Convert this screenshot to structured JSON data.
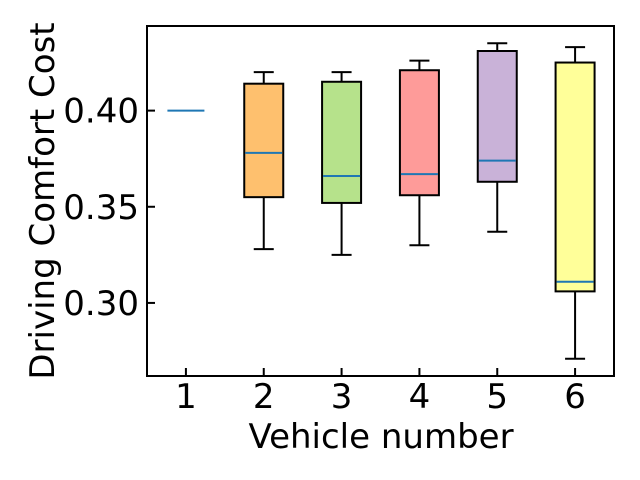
{
  "chart_data": {
    "type": "box",
    "title": "",
    "xlabel": "Vehicle number",
    "ylabel": "Driving Comfort Cost",
    "ylim": [
      0.262,
      0.444
    ],
    "yticks": [
      0.3,
      0.35,
      0.4
    ],
    "ytick_labels": [
      "0.30",
      "0.35",
      "0.40"
    ],
    "categories": [
      "1",
      "2",
      "3",
      "4",
      "5",
      "6"
    ],
    "grid": false,
    "legend": "none",
    "median_color": "#1f77b4",
    "boxes": [
      {
        "category": "1",
        "whisker_low": 0.4,
        "q1": 0.4,
        "median": 0.4,
        "q3": 0.4,
        "whisker_high": 0.4,
        "color": "#ffffff"
      },
      {
        "category": "2",
        "whisker_low": 0.328,
        "q1": 0.355,
        "median": 0.378,
        "q3": 0.414,
        "whisker_high": 0.42,
        "color": "#fec06e"
      },
      {
        "category": "3",
        "whisker_low": 0.325,
        "q1": 0.352,
        "median": 0.366,
        "q3": 0.415,
        "whisker_high": 0.42,
        "color": "#b6e28b"
      },
      {
        "category": "4",
        "whisker_low": 0.33,
        "q1": 0.356,
        "median": 0.367,
        "q3": 0.421,
        "whisker_high": 0.426,
        "color": "#fe9b99"
      },
      {
        "category": "5",
        "whisker_low": 0.337,
        "q1": 0.363,
        "median": 0.374,
        "q3": 0.431,
        "whisker_high": 0.435,
        "color": "#c9b2d8"
      },
      {
        "category": "6",
        "whisker_low": 0.271,
        "q1": 0.306,
        "median": 0.311,
        "q3": 0.425,
        "whisker_high": 0.433,
        "color": "#ffff99"
      }
    ]
  }
}
